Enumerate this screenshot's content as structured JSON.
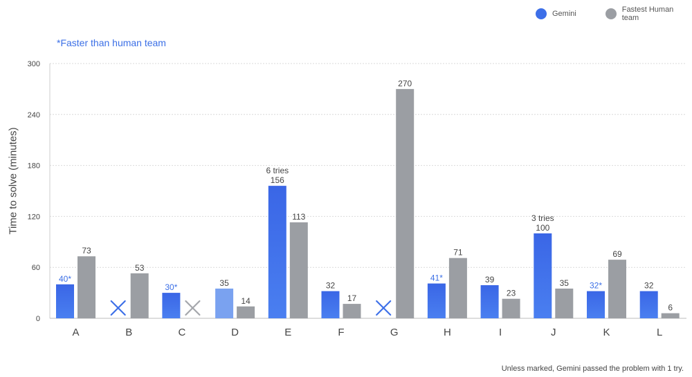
{
  "legend": {
    "gemini_label": "Gemini",
    "human_label": "Fastest Human team"
  },
  "note_text": "*Faster than human team",
  "footer_text": "Unless marked, Gemini passed the problem with 1 try.",
  "colors": {
    "gemini": "#3d6fe8",
    "gemini_light": "#7aa2f0",
    "gemini_label_highlight": "#3b6fe6",
    "human": "#9b9ea3",
    "human_fail_x": "#a4a6ab",
    "gemini_fail_x": "#3d6fe8",
    "text": "#444444",
    "grid": "#d9d9d9"
  },
  "chart_data": {
    "type": "bar",
    "ylabel": "Time to solve (minutes)",
    "xlabel": "",
    "ylim": [
      0,
      300
    ],
    "yticks": [
      0,
      60,
      120,
      180,
      240,
      300
    ],
    "categories": [
      "A",
      "B",
      "C",
      "D",
      "E",
      "F",
      "G",
      "H",
      "I",
      "J",
      "K",
      "L"
    ],
    "series": [
      {
        "name": "Gemini",
        "values": [
          40,
          null,
          30,
          35,
          156,
          32,
          null,
          41,
          39,
          100,
          32,
          32
        ],
        "labels": [
          "40*",
          "",
          "30*",
          "35",
          "156",
          "32",
          "",
          "41*",
          "39",
          "100",
          "32*",
          "32"
        ],
        "faster_than_human": [
          true,
          false,
          true,
          false,
          false,
          false,
          false,
          true,
          false,
          false,
          true,
          false
        ],
        "failed": [
          false,
          true,
          false,
          false,
          false,
          false,
          true,
          false,
          false,
          false,
          false,
          false
        ],
        "tries_note": [
          "",
          "",
          "",
          "",
          "6 tries",
          "",
          "",
          "",
          "",
          "3 tries",
          "",
          ""
        ]
      },
      {
        "name": "Fastest Human team",
        "values": [
          73,
          53,
          null,
          14,
          113,
          17,
          270,
          71,
          23,
          35,
          69,
          6
        ],
        "labels": [
          "73",
          "53",
          "",
          "14",
          "113",
          "17",
          "270",
          "71",
          "23",
          "35",
          "69",
          "6"
        ],
        "failed": [
          false,
          false,
          true,
          false,
          false,
          false,
          false,
          false,
          false,
          false,
          false,
          false
        ]
      }
    ],
    "grid": "horizontal-dotted",
    "legend_position": "top-right"
  }
}
